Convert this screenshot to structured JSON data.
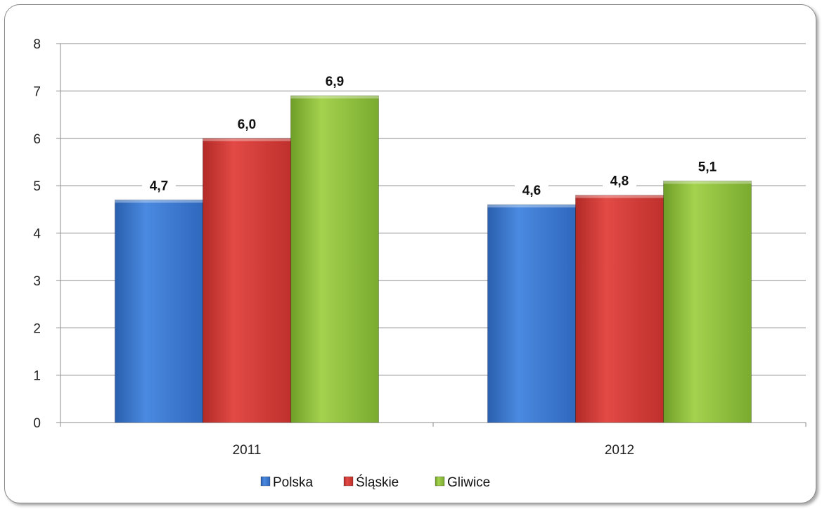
{
  "chart_data": {
    "type": "bar",
    "categories": [
      "2011",
      "2012"
    ],
    "series": [
      {
        "name": "Polska",
        "values": [
          4.7,
          4.6
        ],
        "labels": [
          "4,7",
          "4,6"
        ],
        "color": "#3b78d0"
      },
      {
        "name": "Śląskie",
        "values": [
          6.0,
          4.8
        ],
        "labels": [
          "6,0",
          "4,8"
        ],
        "color": "#d33a36"
      },
      {
        "name": "Gliwice",
        "values": [
          6.9,
          5.1
        ],
        "labels": [
          "6,9",
          "5,1"
        ],
        "color": "#8fc23c"
      }
    ],
    "ylim": [
      0,
      8
    ],
    "yticks": [
      "0",
      "1",
      "2",
      "3",
      "4",
      "5",
      "6",
      "7",
      "8"
    ],
    "grid": true,
    "legend_position": "bottom"
  }
}
